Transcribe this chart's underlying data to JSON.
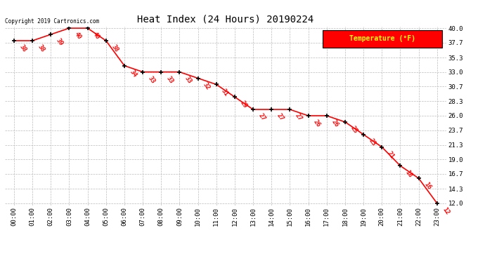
{
  "title": "Heat Index (24 Hours) 20190224",
  "copyright": "Copyright 2019 Cartronics.com",
  "times": [
    "00:00",
    "01:00",
    "02:00",
    "03:00",
    "04:00",
    "05:00",
    "06:00",
    "07:00",
    "08:00",
    "09:00",
    "10:00",
    "11:00",
    "12:00",
    "13:00",
    "14:00",
    "15:00",
    "16:00",
    "17:00",
    "18:00",
    "19:00",
    "20:00",
    "21:00",
    "22:00",
    "23:00"
  ],
  "values": [
    38,
    38,
    39,
    40,
    40,
    38,
    34,
    33,
    33,
    33,
    32,
    31,
    29,
    27,
    27,
    27,
    26,
    26,
    25,
    23,
    21,
    18,
    16,
    12
  ],
  "ylim_min": 12.0,
  "ylim_max": 40.0,
  "yticks": [
    12.0,
    14.3,
    16.7,
    19.0,
    21.3,
    23.7,
    26.0,
    28.3,
    30.7,
    33.0,
    35.3,
    37.7,
    40.0
  ],
  "ytick_labels": [
    "12.0",
    "14.3",
    "16.7",
    "19.0",
    "21.3",
    "23.7",
    "26.0",
    "28.3",
    "30.7",
    "33.0",
    "35.3",
    "37.7",
    "40.0"
  ],
  "line_color": "#ff0000",
  "marker_color": "#000000",
  "label_color": "#ff0000",
  "bg_color": "#ffffff",
  "grid_color": "#bbbbbb",
  "legend_bg": "#ff0000",
  "legend_text": "Temperature (°F)",
  "legend_text_color": "#ffff00"
}
